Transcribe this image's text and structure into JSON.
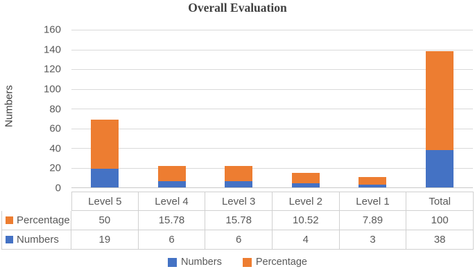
{
  "title": "Overall Evaluation",
  "y_axis_title": "Numbers",
  "colors": {
    "numbers_series": "#4472C4",
    "percentage_series": "#ED7D31",
    "gridline": "#D9D9D9",
    "table_border": "#D0D0D0",
    "axis_text": "#595959",
    "title_text": "#404040"
  },
  "chart_data": {
    "type": "bar",
    "stacked": true,
    "title": "Overall Evaluation",
    "xlabel": "",
    "ylabel": "Numbers",
    "categories": [
      "Level 5",
      "Level 4",
      "Level 3",
      "Level 2",
      "Level 1",
      "Total"
    ],
    "series": [
      {
        "name": "Numbers",
        "color": "#4472C4",
        "values": [
          19,
          6,
          6,
          4,
          3,
          38
        ]
      },
      {
        "name": "Percentage",
        "color": "#ED7D31",
        "values": [
          50,
          15.78,
          15.78,
          10.52,
          7.89,
          100
        ]
      }
    ],
    "ylim": [
      0,
      160
    ],
    "ytick_step": 20,
    "grid": true,
    "legend_position": "bottom",
    "data_table_shown": true
  },
  "table": {
    "header": [
      "Level 5",
      "Level 4",
      "Level 3",
      "Level 2",
      "Level 1",
      "Total"
    ],
    "rows": [
      {
        "label": "Percentage",
        "key_color": "#ED7D31",
        "values": [
          "50",
          "15.78",
          "15.78",
          "10.52",
          "7.89",
          "100"
        ]
      },
      {
        "label": "Numbers",
        "key_color": "#4472C4",
        "values": [
          "19",
          "6",
          "6",
          "4",
          "3",
          "38"
        ]
      }
    ]
  },
  "legend": {
    "items": [
      {
        "label": "Numbers",
        "color": "#4472C4"
      },
      {
        "label": "Percentage",
        "color": "#ED7D31"
      }
    ]
  }
}
